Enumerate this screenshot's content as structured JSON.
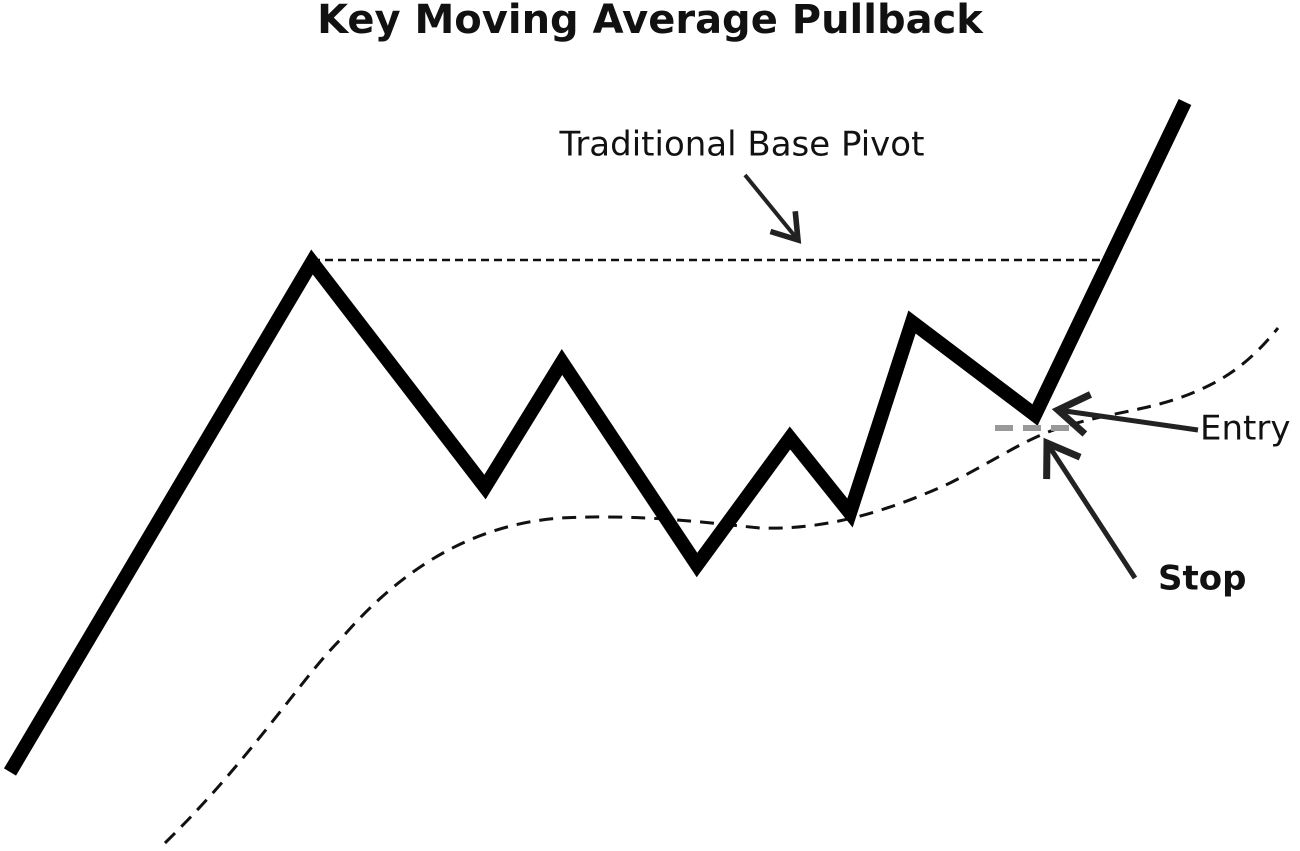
{
  "title": "Key Moving Average Pullback",
  "labels": {
    "pivot": "Traditional Base Pivot",
    "entry": "Entry",
    "stop": "Stop"
  }
}
